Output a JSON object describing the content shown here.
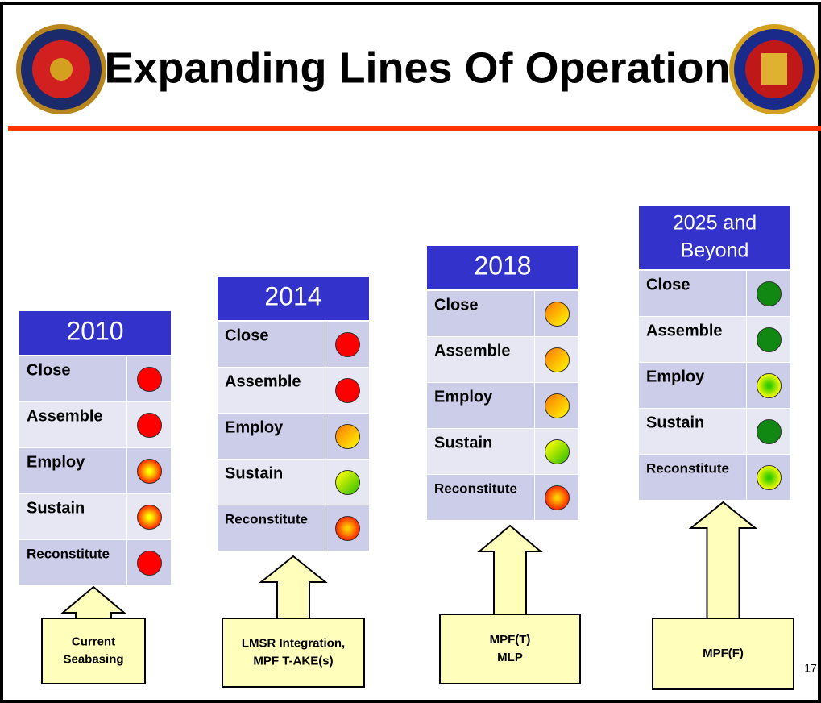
{
  "title": "Expanding Lines Of Operation",
  "page_number": "17",
  "columns": [
    {
      "header": [
        "2010"
      ],
      "rows": [
        {
          "label": "Close",
          "colors": [
            "#ff0000",
            "#ff0000"
          ],
          "gradient": "none"
        },
        {
          "label": "Assemble",
          "colors": [
            "#ff0000",
            "#ff0000"
          ],
          "gradient": "none"
        },
        {
          "label": "Employ",
          "colors": [
            "#ffff00",
            "#ff2000"
          ],
          "gradient": "radial"
        },
        {
          "label": "Sustain",
          "colors": [
            "#ffff00",
            "#ff2000"
          ],
          "gradient": "radial"
        },
        {
          "label": "Reconstitute",
          "colors": [
            "#ff0000",
            "#ff0000"
          ],
          "gradient": "none"
        }
      ],
      "arrow": [
        "Current",
        "Seabasing"
      ]
    },
    {
      "header": [
        "2014"
      ],
      "rows": [
        {
          "label": "Close",
          "colors": [
            "#ff0000",
            "#ff0000"
          ],
          "gradient": "none"
        },
        {
          "label": "Assemble",
          "colors": [
            "#ff0000",
            "#ff0000"
          ],
          "gradient": "none"
        },
        {
          "label": "Employ",
          "colors": [
            "#ff8000",
            "#ffff00"
          ],
          "gradient": "linear"
        },
        {
          "label": "Sustain",
          "colors": [
            "#ffff00",
            "#22bb00"
          ],
          "gradient": "linear"
        },
        {
          "label": "Reconstitute",
          "colors": [
            "#ffcc00",
            "#ff2000"
          ],
          "gradient": "radial"
        }
      ],
      "arrow": [
        "LMSR Integration,",
        "MPF T-AKE(s)"
      ]
    },
    {
      "header": [
        "2018"
      ],
      "rows": [
        {
          "label": "Close",
          "colors": [
            "#ff8000",
            "#ffff00"
          ],
          "gradient": "linear"
        },
        {
          "label": "Assemble",
          "colors": [
            "#ff8000",
            "#ffff00"
          ],
          "gradient": "linear"
        },
        {
          "label": "Employ",
          "colors": [
            "#ff8000",
            "#ffff00"
          ],
          "gradient": "linear"
        },
        {
          "label": "Sustain",
          "colors": [
            "#ffff00",
            "#22bb00"
          ],
          "gradient": "linear"
        },
        {
          "label": "Reconstitute",
          "colors": [
            "#ffcc00",
            "#ff2000"
          ],
          "gradient": "radial"
        }
      ],
      "arrow": [
        "MPF(T)",
        "MLP"
      ]
    },
    {
      "header": [
        "2025 and",
        "Beyond"
      ],
      "rows": [
        {
          "label": "Close",
          "colors": [
            "#118811",
            "#118811"
          ],
          "gradient": "none"
        },
        {
          "label": "Assemble",
          "colors": [
            "#118811",
            "#118811"
          ],
          "gradient": "none"
        },
        {
          "label": "Employ",
          "colors": [
            "#33cc00",
            "#ffff00"
          ],
          "gradient": "radial"
        },
        {
          "label": "Sustain",
          "colors": [
            "#118811",
            "#118811"
          ],
          "gradient": "none"
        },
        {
          "label": "Reconstitute",
          "colors": [
            "#33cc00",
            "#ffff00"
          ],
          "gradient": "radial"
        }
      ],
      "arrow": [
        "MPF(F)"
      ]
    }
  ]
}
